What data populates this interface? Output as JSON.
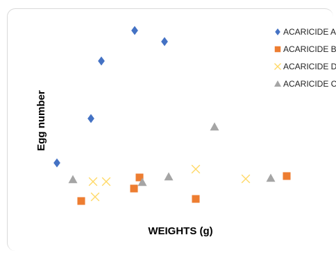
{
  "chart_data": {
    "type": "scatter",
    "xlabel": "WEIGHTS (g)",
    "ylabel": "Egg number",
    "legend_position": "top-right",
    "series": [
      {
        "name": "ACARICIDE A",
        "color": "#4472C4",
        "marker": "diamond",
        "points": [
          [
            82,
            235
          ],
          [
            131,
            171
          ],
          [
            146,
            88
          ],
          [
            194,
            44
          ],
          [
            237,
            60
          ]
        ]
      },
      {
        "name": "ACARICIDE B",
        "color": "#ED7D31",
        "marker": "square",
        "points": [
          [
            117,
            290
          ],
          [
            193,
            272
          ],
          [
            201,
            256
          ],
          [
            282,
            287
          ],
          [
            413,
            254
          ]
        ]
      },
      {
        "name": "ACARICIDE D",
        "color": "#FFD966",
        "marker": "x",
        "points": [
          [
            134,
            262
          ],
          [
            153,
            262
          ],
          [
            137,
            284
          ],
          [
            282,
            244
          ],
          [
            354,
            258
          ]
        ]
      },
      {
        "name": "ACARICIDE C",
        "color": "#A5A5A5",
        "marker": "triangle",
        "points": [
          [
            105,
            259
          ],
          [
            205,
            263
          ],
          [
            243,
            255
          ],
          [
            309,
            183
          ],
          [
            390,
            257
          ]
        ]
      }
    ]
  }
}
